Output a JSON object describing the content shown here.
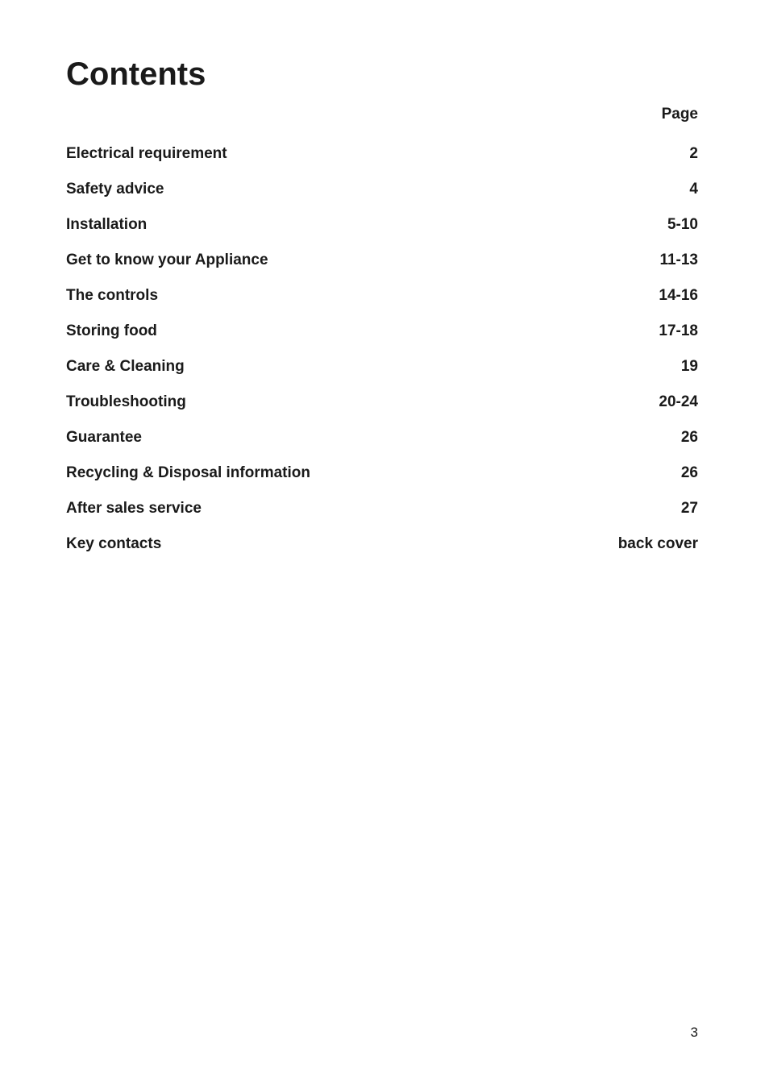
{
  "document": {
    "title": "Contents",
    "page_header_label": "Page",
    "page_number": "3",
    "text_color": "#1a1a1a",
    "background_color": "#ffffff",
    "title_fontsize": 40,
    "body_fontsize": 19,
    "page_number_fontsize": 17,
    "font_weight_bold": 700
  },
  "toc": {
    "entries": [
      {
        "title": "Electrical requirement",
        "page": "2"
      },
      {
        "title": "Safety advice",
        "page": "4"
      },
      {
        "title": "Installation",
        "page": "5-10"
      },
      {
        "title": "Get to know your Appliance",
        "page": "11-13"
      },
      {
        "title": "The controls",
        "page": "14-16"
      },
      {
        "title": "Storing food",
        "page": "17-18"
      },
      {
        "title": "Care & Cleaning",
        "page": "19"
      },
      {
        "title": "Troubleshooting",
        "page": "20-24"
      },
      {
        "title": "Guarantee",
        "page": "26"
      },
      {
        "title": "Recycling & Disposal information",
        "page": "26"
      },
      {
        "title": "After sales service",
        "page": "27"
      },
      {
        "title": "Key contacts",
        "page": "back cover"
      }
    ]
  }
}
